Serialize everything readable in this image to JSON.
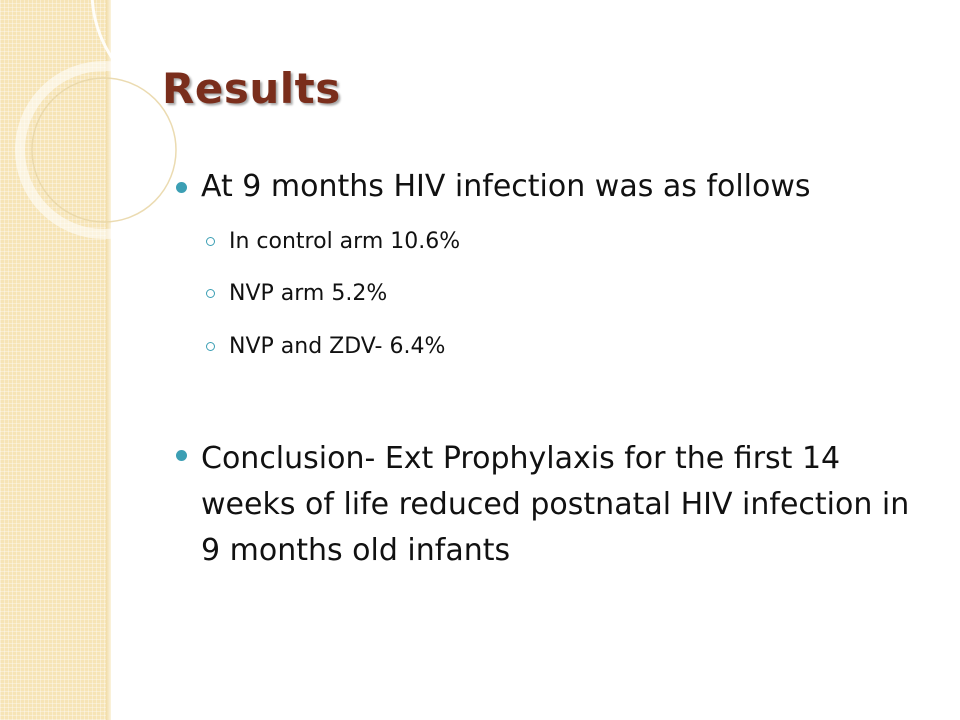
{
  "slide": {
    "title": "Results",
    "bullets": [
      {
        "text": "At 9 months HIV infection was as follows",
        "sub": [
          "In control arm 10.6%",
          "NVP arm 5.2%",
          "NVP and ZDV- 6.4%"
        ]
      },
      {
        "text": "Conclusion- Ext Prophylaxis for the first 14 weeks of life reduced  postnatal HIV infection in 9 months old infants"
      }
    ]
  },
  "colors": {
    "title": "#7a2e1c",
    "bullet": "#3c9fb4",
    "side_band": "#f6e4b6"
  },
  "icons": {
    "level1_bullet": "filled-circle",
    "level2_bullet": "hollow-circle"
  }
}
